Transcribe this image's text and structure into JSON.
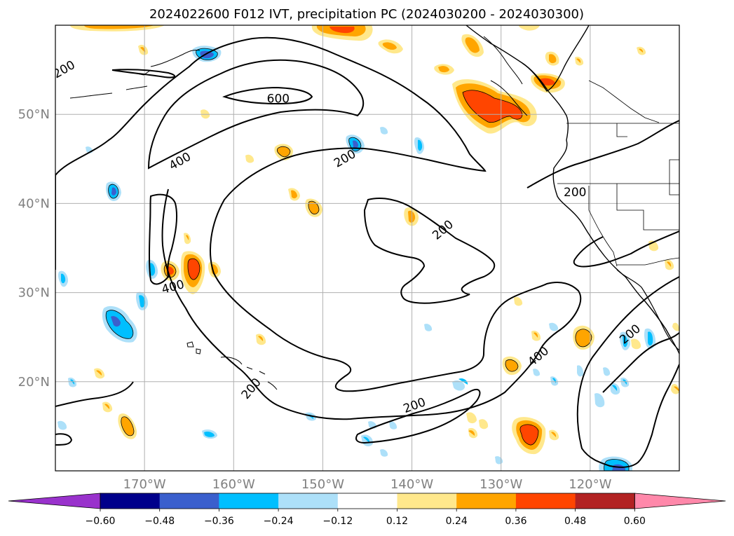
{
  "title": "2024022600 F012 IVT, precipitation PC (2024030200 - 2024030300)",
  "map": {
    "lon_range": [
      -180,
      -110
    ],
    "lat_range": [
      10,
      60
    ],
    "lat_labels": [
      {
        "value": 50,
        "text": "50°N"
      },
      {
        "value": 40,
        "text": "40°N"
      },
      {
        "value": 30,
        "text": "30°N"
      },
      {
        "value": 20,
        "text": "20°N"
      }
    ],
    "lon_labels": [
      {
        "value": -170,
        "text": "170°W"
      },
      {
        "value": -160,
        "text": "160°W"
      },
      {
        "value": -150,
        "text": "150°W"
      },
      {
        "value": -140,
        "text": "140°W"
      },
      {
        "value": -130,
        "text": "130°W"
      },
      {
        "value": -120,
        "text": "120°W"
      }
    ],
    "grid": true,
    "contour_labels": [
      {
        "text": "200",
        "lon": -179,
        "lat": 55.0,
        "angle": -30
      },
      {
        "text": "600",
        "lon": -155,
        "lat": 51.7,
        "angle": 0
      },
      {
        "text": "400",
        "lon": -166,
        "lat": 44.7,
        "angle": -30
      },
      {
        "text": "200",
        "lon": -147.5,
        "lat": 45.0,
        "angle": -30
      },
      {
        "text": "200",
        "lon": -121.7,
        "lat": 41.2,
        "angle": 0
      },
      {
        "text": "200",
        "lon": -136.5,
        "lat": 37.0,
        "angle": -40
      },
      {
        "text": "400",
        "lon": -166.8,
        "lat": 30.6,
        "angle": -15
      },
      {
        "text": "200",
        "lon": -115.5,
        "lat": 25.3,
        "angle": -40
      },
      {
        "text": "400",
        "lon": -125.8,
        "lat": 22.8,
        "angle": -40
      },
      {
        "text": "200",
        "lon": -158,
        "lat": 19.2,
        "angle": -50
      },
      {
        "text": "200",
        "lon": -139.7,
        "lat": 17.3,
        "angle": -20
      }
    ]
  },
  "colorbar": {
    "colors": [
      "#9932CC",
      "#00008B",
      "#3A5FCD",
      "#00BFFF",
      "#ADE0F9",
      "#FFFFFF",
      "#FFE88C",
      "#FFA500",
      "#FF4500",
      "#B22222",
      "#FF88AA"
    ],
    "tick_labels": [
      "−0.60",
      "−0.48",
      "−0.36",
      "−0.24",
      "−0.12",
      "0.12",
      "0.24",
      "0.36",
      "0.48",
      "0.60"
    ]
  }
}
